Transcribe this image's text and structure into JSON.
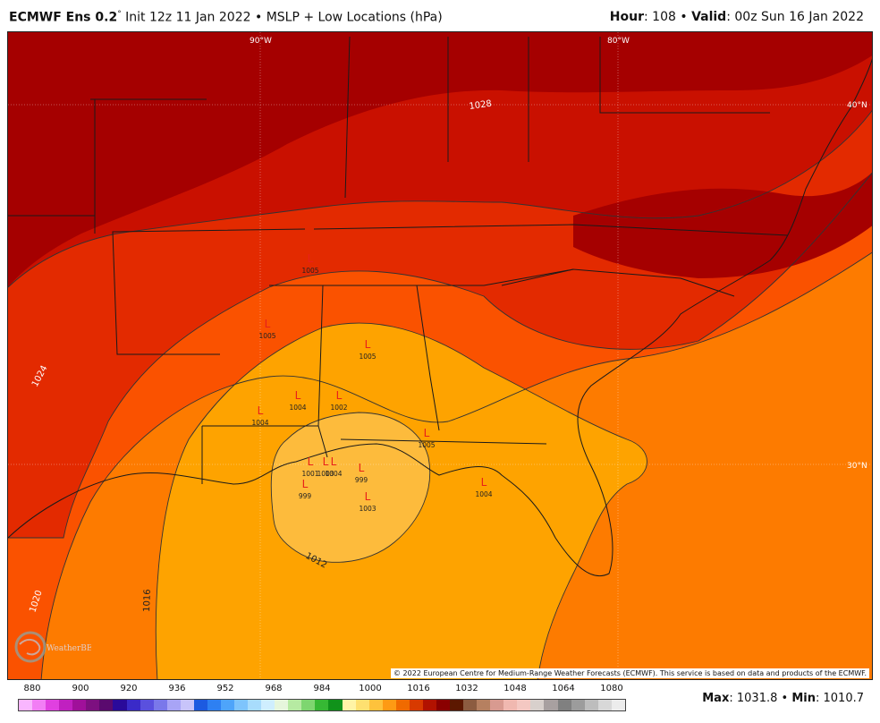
{
  "header": {
    "model": "ECMWF Ens 0.2",
    "degree": "°",
    "init": "Init 12z 11 Jan 2022",
    "sep": "•",
    "product": "MSLP + Low Locations (hPa)",
    "hour_label": "Hour",
    "hour_value": "108",
    "valid_label": "Valid",
    "valid_value": "00z Sun 16 Jan 2022"
  },
  "map": {
    "grid_labels": {
      "lon_90": "90°W",
      "lon_80": "80°W",
      "lat_40": "40°N",
      "lat_30": "30°N"
    },
    "contour_labels": [
      "1028",
      "1024",
      "1020",
      "1016",
      "1012"
    ],
    "lows": [
      {
        "symbol": "L",
        "value": "1005"
      },
      {
        "symbol": "L",
        "value": "1005"
      },
      {
        "symbol": "L",
        "value": "1005"
      },
      {
        "symbol": "L",
        "value": "1004"
      },
      {
        "symbol": "L",
        "value": "1004"
      },
      {
        "symbol": "L",
        "value": "1002"
      },
      {
        "symbol": "L",
        "value": "1005"
      },
      {
        "symbol": "L",
        "value": "1001"
      },
      {
        "symbol": "L",
        "value": "1004"
      },
      {
        "symbol": "L",
        "value": "999"
      },
      {
        "symbol": "L",
        "value": "1003"
      },
      {
        "symbol": "L",
        "value": "999"
      },
      {
        "symbol": "L",
        "value": "1003"
      },
      {
        "symbol": "L",
        "value": "1004"
      }
    ],
    "fill_colors": {
      "lt1012": "#fdbb3c",
      "b1012_1016": "#fea300",
      "b1016_1020": "#fd7b00",
      "b1020_1024": "#fa5200",
      "b1024_1028": "#e32a00",
      "gt1028": "#c91000",
      "gt1030": "#a50000",
      "low_symbol": "#e8201a"
    }
  },
  "copyright": "© 2022 European Centre for Medium-Range Weather Forecasts (ECMWF). This service is based on data and products of the ECMWF.",
  "logo": {
    "text": "WeatherBELL"
  },
  "colorbar": {
    "ticks": [
      "880",
      "900",
      "920",
      "936",
      "952",
      "968",
      "984",
      "1000",
      "1016",
      "1032",
      "1048",
      "1064",
      "1080"
    ],
    "colors": [
      "#f9b6ff",
      "#f27ef5",
      "#e040e0",
      "#c020c0",
      "#a0109a",
      "#7d1080",
      "#5a0a6e",
      "#2a0a9a",
      "#3a2ac8",
      "#5a50de",
      "#7a78ea",
      "#a8a4f6",
      "#c8c4fa",
      "#1c5ae0",
      "#2e80f2",
      "#4ea4fa",
      "#7ec4fc",
      "#a8dcfc",
      "#cfeefe",
      "#e6f6dc",
      "#b6eaa2",
      "#7ed670",
      "#36b834",
      "#10921a",
      "#fff4a6",
      "#fee070",
      "#fec23c",
      "#fe9a14",
      "#f06a00",
      "#d83a00",
      "#b21200",
      "#8a0000",
      "#5c1800",
      "#8c5c40",
      "#b68060",
      "#d89a90",
      "#f0b8b0",
      "#f4c8c2",
      "#d8d0cc",
      "#a8a0a0",
      "#808080",
      "#9c9c9c",
      "#bdbdbd",
      "#d8d8d8",
      "#ececec"
    ]
  },
  "stats": {
    "max_label": "Max",
    "max_value": "1031.8",
    "sep": "•",
    "min_label": "Min",
    "min_value": "1010.7"
  }
}
